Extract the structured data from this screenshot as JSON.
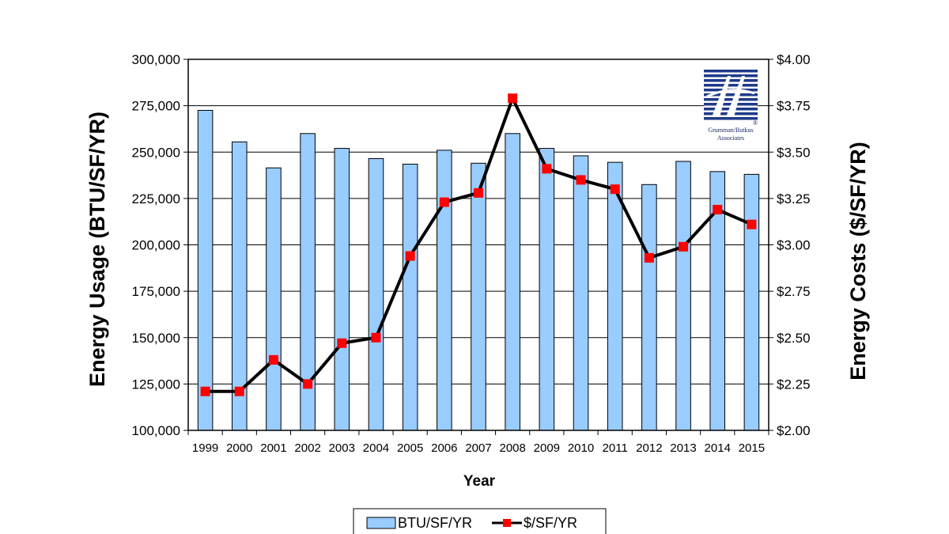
{
  "chart_data": {
    "type": "bar+line",
    "categories": [
      "1999",
      "2000",
      "2001",
      "2002",
      "2003",
      "2004",
      "2005",
      "2006",
      "2007",
      "2008",
      "2009",
      "2010",
      "2011",
      "2012",
      "2013",
      "2014",
      "2015"
    ],
    "series": [
      {
        "name": "BTU/SF/YR",
        "type": "bar",
        "axis": "left",
        "color": "#99ccff",
        "values": [
          272500,
          255500,
          241500,
          260000,
          252000,
          246500,
          243500,
          251000,
          244000,
          260000,
          252000,
          248000,
          244500,
          232500,
          245000,
          239500,
          238000
        ]
      },
      {
        "name": "$/SF/YR",
        "type": "line",
        "axis": "right",
        "color": "#000000",
        "marker_color": "#ff0000",
        "values": [
          2.21,
          2.21,
          2.38,
          2.25,
          2.47,
          2.5,
          2.94,
          3.23,
          3.28,
          3.79,
          3.41,
          3.35,
          3.3,
          2.93,
          2.99,
          3.19,
          3.11
        ]
      }
    ],
    "xlabel": "Year",
    "ylabel_left": "Energy Usage (BTU/SF/YR)",
    "ylabel_right": "Energy Costs ($/SF/YR)",
    "ylim_left": [
      100000,
      300000
    ],
    "ylim_right": [
      2.0,
      4.0
    ],
    "yticks_left": [
      "100,000",
      "125,000",
      "150,000",
      "175,000",
      "200,000",
      "225,000",
      "250,000",
      "275,000",
      "300,000"
    ],
    "yticks_right": [
      "$2.00",
      "$2.25",
      "$2.50",
      "$2.75",
      "$3.00",
      "$3.25",
      "$3.50",
      "$3.75",
      "$4.00"
    ],
    "grid": true,
    "legend": "bottom",
    "legend_entries": [
      "BTU/SF/YR",
      "$/SF/YR"
    ]
  },
  "logo": {
    "name": "grumman-butkus-logo",
    "line1": "Grumman/Butkus",
    "line2": "Associates",
    "mark": "®"
  }
}
